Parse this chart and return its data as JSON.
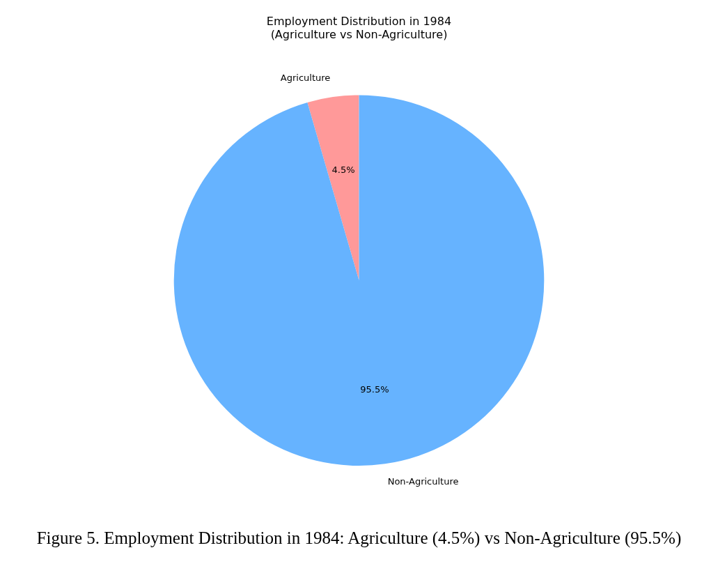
{
  "chart_data": {
    "type": "pie",
    "title": "Employment Distribution in 1984\n(Agriculture vs Non-Agriculture)",
    "categories": [
      "Agriculture",
      "Non-Agriculture"
    ],
    "values": [
      4.5,
      95.5
    ],
    "colors": [
      "#ff9999",
      "#66b3ff"
    ],
    "value_labels": [
      "4.5%",
      "95.5%"
    ],
    "legend": false,
    "annotations": [
      "Figure 5. Employment Distribution in 1984: Agriculture (4.5%) vs Non-Agriculture (95.5%)"
    ]
  }
}
